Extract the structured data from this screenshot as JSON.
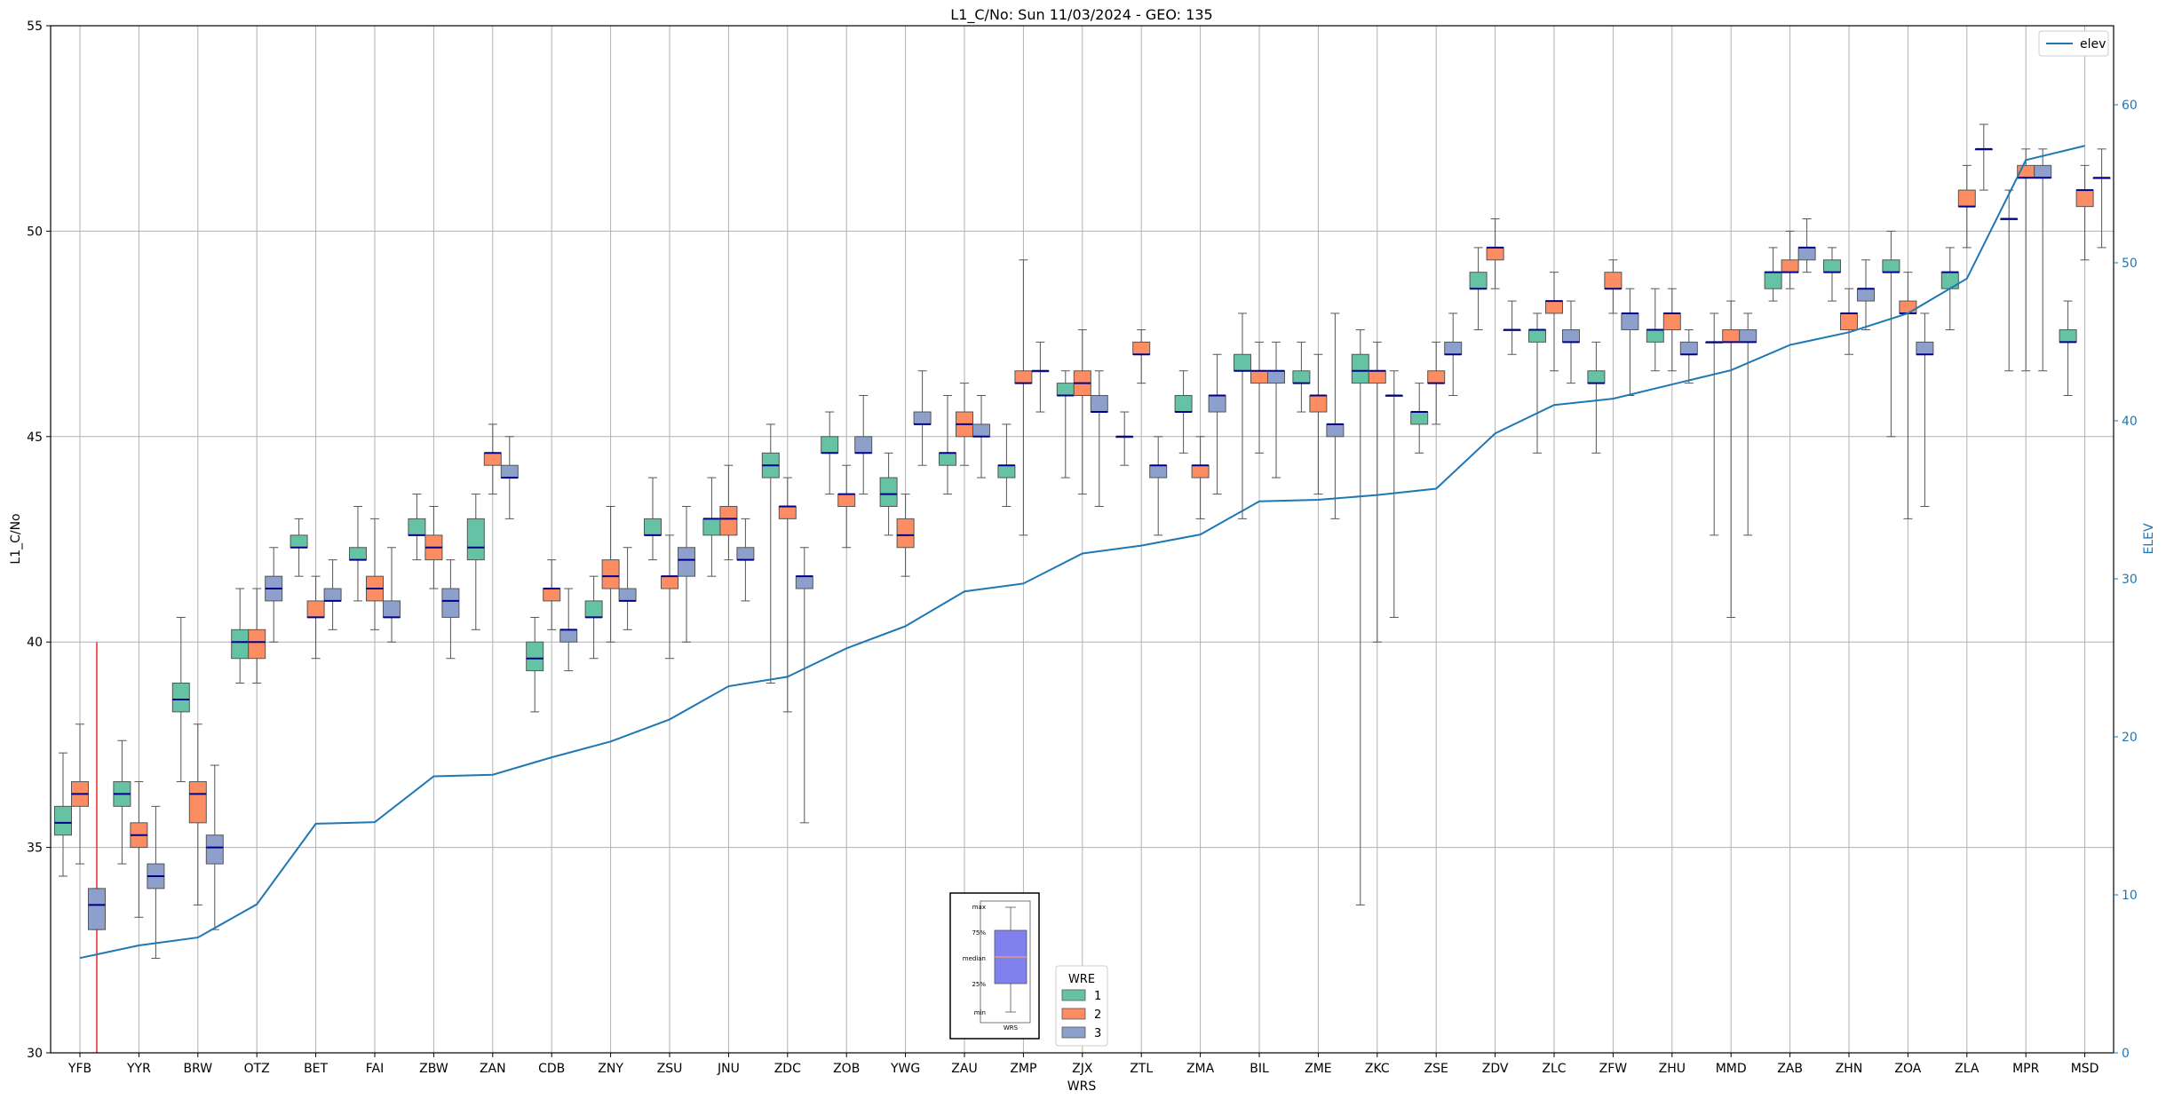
{
  "chart_data": {
    "type": "box",
    "title": "L1_C/No: Sun 11/03/2024 - GEO: 135",
    "xlabel": "WRS",
    "ylabel": "L1_C/No",
    "y2label": "ELEV",
    "ylim": [
      30,
      55
    ],
    "y2lim": [
      0,
      65
    ],
    "yticks": [
      "30",
      "35",
      "40",
      "45",
      "50",
      "55"
    ],
    "y2ticks": [
      "0",
      "10",
      "20",
      "30",
      "40",
      "50",
      "60"
    ],
    "grid": true,
    "categories": [
      "YFB",
      "YYR",
      "BRW",
      "OTZ",
      "BET",
      "FAI",
      "ZBW",
      "ZAN",
      "CDB",
      "ZNY",
      "ZSU",
      "JNU",
      "ZDC",
      "ZOB",
      "YWG",
      "ZAU",
      "ZMP",
      "ZJX",
      "ZTL",
      "ZMA",
      "BIL",
      "ZME",
      "ZKC",
      "ZSE",
      "ZDV",
      "ZLC",
      "ZFW",
      "ZHU",
      "MMD",
      "ZAB",
      "ZHN",
      "ZOA",
      "ZLA",
      "MPR",
      "MSD"
    ],
    "legend_title": "WRE",
    "legend": [
      {
        "label": "1",
        "color": "#66c2a5"
      },
      {
        "label": "2",
        "color": "#fc8d62"
      },
      {
        "label": "3",
        "color": "#8da0cb"
      }
    ],
    "line_legend": "elev",
    "line_color": "#1f77b4",
    "legend_position": "upper-right",
    "elev": [
      6.0,
      6.8,
      7.3,
      9.4,
      14.5,
      14.6,
      17.5,
      17.6,
      18.7,
      19.7,
      21.1,
      23.2,
      23.8,
      25.6,
      27.0,
      29.2,
      29.7,
      31.6,
      32.1,
      32.8,
      34.9,
      35.0,
      35.3,
      35.7,
      39.2,
      41.0,
      41.4,
      42.3,
      43.2,
      44.8,
      45.6,
      46.8,
      49.0,
      56.5,
      57.4
    ],
    "boxes": [
      {
        "site": "YFB",
        "wre": 1,
        "min": 34.3,
        "q1": 35.3,
        "median": 35.6,
        "q3": 36.0,
        "max": 37.3
      },
      {
        "site": "YFB",
        "wre": 2,
        "min": 34.6,
        "q1": 36.0,
        "median": 36.3,
        "q3": 36.6,
        "max": 38.0
      },
      {
        "site": "YFB",
        "wre": 3,
        "min": 33.0,
        "q1": 33.0,
        "median": 33.6,
        "q3": 34.0,
        "max": 34.0
      },
      {
        "site": "YYR",
        "wre": 1,
        "min": 34.6,
        "q1": 36.0,
        "median": 36.3,
        "q3": 36.6,
        "max": 37.6
      },
      {
        "site": "YYR",
        "wre": 2,
        "min": 33.3,
        "q1": 35.0,
        "median": 35.3,
        "q3": 35.6,
        "max": 36.6
      },
      {
        "site": "YYR",
        "wre": 3,
        "min": 32.3,
        "q1": 34.0,
        "median": 34.3,
        "q3": 34.6,
        "max": 36.0
      },
      {
        "site": "BRW",
        "wre": 1,
        "min": 36.6,
        "q1": 38.3,
        "median": 38.6,
        "q3": 39.0,
        "max": 40.6
      },
      {
        "site": "BRW",
        "wre": 2,
        "min": 33.6,
        "q1": 35.6,
        "median": 36.3,
        "q3": 36.6,
        "max": 38.0
      },
      {
        "site": "BRW",
        "wre": 3,
        "min": 33.0,
        "q1": 34.6,
        "median": 35.0,
        "q3": 35.3,
        "max": 37.0
      },
      {
        "site": "OTZ",
        "wre": 1,
        "min": 39.0,
        "q1": 39.6,
        "median": 40.0,
        "q3": 40.3,
        "max": 41.3
      },
      {
        "site": "OTZ",
        "wre": 2,
        "min": 39.0,
        "q1": 39.6,
        "median": 40.0,
        "q3": 40.3,
        "max": 41.3
      },
      {
        "site": "OTZ",
        "wre": 3,
        "min": 40.0,
        "q1": 41.0,
        "median": 41.3,
        "q3": 41.6,
        "max": 42.3
      },
      {
        "site": "BET",
        "wre": 1,
        "min": 41.6,
        "q1": 42.3,
        "median": 42.3,
        "q3": 42.6,
        "max": 43.0
      },
      {
        "site": "BET",
        "wre": 2,
        "min": 39.6,
        "q1": 40.6,
        "median": 40.6,
        "q3": 41.0,
        "max": 41.6
      },
      {
        "site": "BET",
        "wre": 3,
        "min": 40.3,
        "q1": 41.0,
        "median": 41.0,
        "q3": 41.3,
        "max": 42.0
      },
      {
        "site": "FAI",
        "wre": 1,
        "min": 41.0,
        "q1": 42.0,
        "median": 42.0,
        "q3": 42.3,
        "max": 43.3
      },
      {
        "site": "FAI",
        "wre": 2,
        "min": 40.3,
        "q1": 41.0,
        "median": 41.3,
        "q3": 41.6,
        "max": 43.0
      },
      {
        "site": "FAI",
        "wre": 3,
        "min": 40.0,
        "q1": 40.6,
        "median": 40.6,
        "q3": 41.0,
        "max": 42.3
      },
      {
        "site": "ZBW",
        "wre": 1,
        "min": 42.0,
        "q1": 42.6,
        "median": 42.6,
        "q3": 43.0,
        "max": 43.6
      },
      {
        "site": "ZBW",
        "wre": 2,
        "min": 41.3,
        "q1": 42.0,
        "median": 42.3,
        "q3": 42.6,
        "max": 43.3
      },
      {
        "site": "ZBW",
        "wre": 3,
        "min": 39.6,
        "q1": 40.6,
        "median": 41.0,
        "q3": 41.3,
        "max": 42.0
      },
      {
        "site": "ZAN",
        "wre": 1,
        "min": 40.3,
        "q1": 42.0,
        "median": 42.3,
        "q3": 43.0,
        "max": 43.6
      },
      {
        "site": "ZAN",
        "wre": 2,
        "min": 43.6,
        "q1": 44.3,
        "median": 44.6,
        "q3": 44.6,
        "max": 45.3
      },
      {
        "site": "ZAN",
        "wre": 3,
        "min": 43.0,
        "q1": 44.0,
        "median": 44.0,
        "q3": 44.3,
        "max": 45.0
      },
      {
        "site": "CDB",
        "wre": 1,
        "min": 38.3,
        "q1": 39.3,
        "median": 39.6,
        "q3": 40.0,
        "max": 40.6
      },
      {
        "site": "CDB",
        "wre": 2,
        "min": 40.3,
        "q1": 41.0,
        "median": 41.3,
        "q3": 41.3,
        "max": 42.0
      },
      {
        "site": "CDB",
        "wre": 3,
        "min": 39.3,
        "q1": 40.0,
        "median": 40.3,
        "q3": 40.3,
        "max": 41.3
      },
      {
        "site": "ZNY",
        "wre": 1,
        "min": 39.6,
        "q1": 40.6,
        "median": 40.6,
        "q3": 41.0,
        "max": 41.6
      },
      {
        "site": "ZNY",
        "wre": 2,
        "min": 40.0,
        "q1": 41.3,
        "median": 41.6,
        "q3": 42.0,
        "max": 43.3
      },
      {
        "site": "ZNY",
        "wre": 3,
        "min": 40.3,
        "q1": 41.0,
        "median": 41.0,
        "q3": 41.3,
        "max": 42.3
      },
      {
        "site": "ZSU",
        "wre": 1,
        "min": 42.0,
        "q1": 42.6,
        "median": 42.6,
        "q3": 43.0,
        "max": 44.0
      },
      {
        "site": "ZSU",
        "wre": 2,
        "min": 39.6,
        "q1": 41.3,
        "median": 41.6,
        "q3": 41.6,
        "max": 42.6
      },
      {
        "site": "ZSU",
        "wre": 3,
        "min": 40.0,
        "q1": 41.6,
        "median": 42.0,
        "q3": 42.3,
        "max": 43.3
      },
      {
        "site": "JNU",
        "wre": 1,
        "min": 41.6,
        "q1": 42.6,
        "median": 43.0,
        "q3": 43.0,
        "max": 44.0
      },
      {
        "site": "JNU",
        "wre": 2,
        "min": 42.0,
        "q1": 42.6,
        "median": 43.0,
        "q3": 43.3,
        "max": 44.3
      },
      {
        "site": "JNU",
        "wre": 3,
        "min": 41.0,
        "q1": 42.0,
        "median": 42.0,
        "q3": 42.3,
        "max": 43.0
      },
      {
        "site": "ZDC",
        "wre": 1,
        "min": 39.0,
        "q1": 44.0,
        "median": 44.3,
        "q3": 44.6,
        "max": 45.3
      },
      {
        "site": "ZDC",
        "wre": 2,
        "min": 38.3,
        "q1": 43.0,
        "median": 43.3,
        "q3": 43.3,
        "max": 44.0
      },
      {
        "site": "ZDC",
        "wre": 3,
        "min": 35.6,
        "q1": 41.3,
        "median": 41.6,
        "q3": 41.6,
        "max": 42.3
      },
      {
        "site": "ZOB",
        "wre": 1,
        "min": 43.6,
        "q1": 44.6,
        "median": 44.6,
        "q3": 45.0,
        "max": 45.6
      },
      {
        "site": "ZOB",
        "wre": 2,
        "min": 42.3,
        "q1": 43.3,
        "median": 43.6,
        "q3": 43.6,
        "max": 44.3
      },
      {
        "site": "ZOB",
        "wre": 3,
        "min": 43.6,
        "q1": 44.6,
        "median": 44.6,
        "q3": 45.0,
        "max": 46.0
      },
      {
        "site": "YWG",
        "wre": 1,
        "min": 42.6,
        "q1": 43.3,
        "median": 43.6,
        "q3": 44.0,
        "max": 44.6
      },
      {
        "site": "YWG",
        "wre": 2,
        "min": 41.6,
        "q1": 42.3,
        "median": 42.6,
        "q3": 43.0,
        "max": 43.6
      },
      {
        "site": "YWG",
        "wre": 3,
        "min": 44.3,
        "q1": 45.3,
        "median": 45.3,
        "q3": 45.6,
        "max": 46.6
      },
      {
        "site": "ZAU",
        "wre": 1,
        "min": 43.6,
        "q1": 44.3,
        "median": 44.6,
        "q3": 44.6,
        "max": 46.0
      },
      {
        "site": "ZAU",
        "wre": 2,
        "min": 44.3,
        "q1": 45.0,
        "median": 45.3,
        "q3": 45.6,
        "max": 46.3
      },
      {
        "site": "ZAU",
        "wre": 3,
        "min": 44.0,
        "q1": 45.0,
        "median": 45.0,
        "q3": 45.3,
        "max": 46.0
      },
      {
        "site": "ZMP",
        "wre": 1,
        "min": 43.3,
        "q1": 44.0,
        "median": 44.3,
        "q3": 44.3,
        "max": 45.3
      },
      {
        "site": "ZMP",
        "wre": 2,
        "min": 42.6,
        "q1": 46.3,
        "median": 46.3,
        "q3": 46.6,
        "max": 49.3
      },
      {
        "site": "ZMP",
        "wre": 3,
        "min": 45.6,
        "q1": 46.6,
        "median": 46.6,
        "q3": 46.6,
        "max": 47.3
      },
      {
        "site": "ZJX",
        "wre": 1,
        "min": 44.0,
        "q1": 46.0,
        "median": 46.0,
        "q3": 46.3,
        "max": 46.6
      },
      {
        "site": "ZJX",
        "wre": 2,
        "min": 43.6,
        "q1": 46.0,
        "median": 46.3,
        "q3": 46.6,
        "max": 47.6
      },
      {
        "site": "ZJX",
        "wre": 3,
        "min": 43.3,
        "q1": 45.6,
        "median": 45.6,
        "q3": 46.0,
        "max": 46.6
      },
      {
        "site": "ZTL",
        "wre": 1,
        "min": 44.3,
        "q1": 45.0,
        "median": 45.0,
        "q3": 45.0,
        "max": 45.6
      },
      {
        "site": "ZTL",
        "wre": 2,
        "min": 46.3,
        "q1": 47.0,
        "median": 47.0,
        "q3": 47.3,
        "max": 47.6
      },
      {
        "site": "ZTL",
        "wre": 3,
        "min": 42.6,
        "q1": 44.0,
        "median": 44.3,
        "q3": 44.3,
        "max": 45.0
      },
      {
        "site": "ZMA",
        "wre": 1,
        "min": 44.6,
        "q1": 45.6,
        "median": 45.6,
        "q3": 46.0,
        "max": 46.6
      },
      {
        "site": "ZMA",
        "wre": 2,
        "min": 43.0,
        "q1": 44.0,
        "median": 44.3,
        "q3": 44.3,
        "max": 45.0
      },
      {
        "site": "ZMA",
        "wre": 3,
        "min": 43.6,
        "q1": 45.6,
        "median": 46.0,
        "q3": 46.0,
        "max": 47.0
      },
      {
        "site": "BIL",
        "wre": 1,
        "min": 43.0,
        "q1": 46.6,
        "median": 46.6,
        "q3": 47.0,
        "max": 48.0
      },
      {
        "site": "BIL",
        "wre": 2,
        "min": 44.6,
        "q1": 46.3,
        "median": 46.6,
        "q3": 46.6,
        "max": 47.3
      },
      {
        "site": "BIL",
        "wre": 3,
        "min": 44.0,
        "q1": 46.3,
        "median": 46.6,
        "q3": 46.6,
        "max": 47.3
      },
      {
        "site": "ZME",
        "wre": 1,
        "min": 45.6,
        "q1": 46.3,
        "median": 46.3,
        "q3": 46.6,
        "max": 47.3
      },
      {
        "site": "ZME",
        "wre": 2,
        "min": 43.6,
        "q1": 45.6,
        "median": 46.0,
        "q3": 46.0,
        "max": 47.0
      },
      {
        "site": "ZME",
        "wre": 3,
        "min": 43.0,
        "q1": 45.0,
        "median": 45.3,
        "q3": 45.3,
        "max": 48.0
      },
      {
        "site": "ZKC",
        "wre": 1,
        "min": 33.6,
        "q1": 46.3,
        "median": 46.6,
        "q3": 47.0,
        "max": 47.6
      },
      {
        "site": "ZKC",
        "wre": 2,
        "min": 40.0,
        "q1": 46.3,
        "median": 46.6,
        "q3": 46.6,
        "max": 47.3
      },
      {
        "site": "ZKC",
        "wre": 3,
        "min": 40.6,
        "q1": 46.0,
        "median": 46.0,
        "q3": 46.0,
        "max": 46.6
      },
      {
        "site": "ZSE",
        "wre": 1,
        "min": 44.6,
        "q1": 45.3,
        "median": 45.6,
        "q3": 45.6,
        "max": 46.3
      },
      {
        "site": "ZSE",
        "wre": 2,
        "min": 45.3,
        "q1": 46.3,
        "median": 46.3,
        "q3": 46.6,
        "max": 47.3
      },
      {
        "site": "ZSE",
        "wre": 3,
        "min": 46.0,
        "q1": 47.0,
        "median": 47.0,
        "q3": 47.3,
        "max": 48.0
      },
      {
        "site": "ZDV",
        "wre": 1,
        "min": 47.6,
        "q1": 48.6,
        "median": 48.6,
        "q3": 49.0,
        "max": 49.6
      },
      {
        "site": "ZDV",
        "wre": 2,
        "min": 48.6,
        "q1": 49.3,
        "median": 49.6,
        "q3": 49.6,
        "max": 50.3
      },
      {
        "site": "ZDV",
        "wre": 3,
        "min": 47.0,
        "q1": 47.6,
        "median": 47.6,
        "q3": 47.6,
        "max": 48.3
      },
      {
        "site": "ZLC",
        "wre": 1,
        "min": 44.6,
        "q1": 47.3,
        "median": 47.6,
        "q3": 47.6,
        "max": 48.0
      },
      {
        "site": "ZLC",
        "wre": 2,
        "min": 46.6,
        "q1": 48.0,
        "median": 48.3,
        "q3": 48.3,
        "max": 49.0
      },
      {
        "site": "ZLC",
        "wre": 3,
        "min": 46.3,
        "q1": 47.3,
        "median": 47.3,
        "q3": 47.6,
        "max": 48.3
      },
      {
        "site": "ZFW",
        "wre": 1,
        "min": 44.6,
        "q1": 46.3,
        "median": 46.3,
        "q3": 46.6,
        "max": 47.3
      },
      {
        "site": "ZFW",
        "wre": 2,
        "min": 48.0,
        "q1": 48.6,
        "median": 48.6,
        "q3": 49.0,
        "max": 49.3
      },
      {
        "site": "ZFW",
        "wre": 3,
        "min": 46.0,
        "q1": 47.6,
        "median": 48.0,
        "q3": 48.0,
        "max": 48.6
      },
      {
        "site": "ZHU",
        "wre": 1,
        "min": 46.6,
        "q1": 47.3,
        "median": 47.6,
        "q3": 47.6,
        "max": 48.6
      },
      {
        "site": "ZHU",
        "wre": 2,
        "min": 46.6,
        "q1": 47.6,
        "median": 48.0,
        "q3": 48.0,
        "max": 48.6
      },
      {
        "site": "ZHU",
        "wre": 3,
        "min": 46.3,
        "q1": 47.0,
        "median": 47.0,
        "q3": 47.3,
        "max": 47.6
      },
      {
        "site": "MMD",
        "wre": 1,
        "min": 42.6,
        "q1": 47.3,
        "median": 47.3,
        "q3": 47.3,
        "max": 48.0
      },
      {
        "site": "MMD",
        "wre": 2,
        "min": 40.6,
        "q1": 47.3,
        "median": 47.3,
        "q3": 47.6,
        "max": 48.3
      },
      {
        "site": "MMD",
        "wre": 3,
        "min": 42.6,
        "q1": 47.3,
        "median": 47.3,
        "q3": 47.6,
        "max": 48.0
      },
      {
        "site": "ZAB",
        "wre": 1,
        "min": 48.3,
        "q1": 48.6,
        "median": 49.0,
        "q3": 49.0,
        "max": 49.6
      },
      {
        "site": "ZAB",
        "wre": 2,
        "min": 48.6,
        "q1": 49.0,
        "median": 49.0,
        "q3": 49.3,
        "max": 50.0
      },
      {
        "site": "ZAB",
        "wre": 3,
        "min": 49.0,
        "q1": 49.3,
        "median": 49.6,
        "q3": 49.6,
        "max": 50.3
      },
      {
        "site": "ZHN",
        "wre": 1,
        "min": 48.3,
        "q1": 49.0,
        "median": 49.0,
        "q3": 49.3,
        "max": 49.6
      },
      {
        "site": "ZHN",
        "wre": 2,
        "min": 47.0,
        "q1": 47.6,
        "median": 48.0,
        "q3": 48.0,
        "max": 48.6
      },
      {
        "site": "ZHN",
        "wre": 3,
        "min": 47.6,
        "q1": 48.3,
        "median": 48.6,
        "q3": 48.6,
        "max": 49.3
      },
      {
        "site": "ZOA",
        "wre": 1,
        "min": 45.0,
        "q1": 49.0,
        "median": 49.0,
        "q3": 49.3,
        "max": 50.0
      },
      {
        "site": "ZOA",
        "wre": 2,
        "min": 43.0,
        "q1": 48.0,
        "median": 48.0,
        "q3": 48.3,
        "max": 49.0
      },
      {
        "site": "ZOA",
        "wre": 3,
        "min": 43.3,
        "q1": 47.0,
        "median": 47.0,
        "q3": 47.3,
        "max": 48.0
      },
      {
        "site": "ZLA",
        "wre": 1,
        "min": 47.6,
        "q1": 48.6,
        "median": 49.0,
        "q3": 49.0,
        "max": 49.6
      },
      {
        "site": "ZLA",
        "wre": 2,
        "min": 49.6,
        "q1": 50.6,
        "median": 50.6,
        "q3": 51.0,
        "max": 51.6
      },
      {
        "site": "ZLA",
        "wre": 3,
        "min": 51.0,
        "q1": 52.0,
        "median": 52.0,
        "q3": 52.0,
        "max": 52.6
      },
      {
        "site": "MPR",
        "wre": 1,
        "min": 46.6,
        "q1": 50.3,
        "median": 50.3,
        "q3": 50.3,
        "max": 51.0
      },
      {
        "site": "MPR",
        "wre": 2,
        "min": 46.6,
        "q1": 51.3,
        "median": 51.3,
        "q3": 51.6,
        "max": 52.0
      },
      {
        "site": "MPR",
        "wre": 3,
        "min": 46.6,
        "q1": 51.3,
        "median": 51.3,
        "q3": 51.6,
        "max": 52.0
      },
      {
        "site": "MSD",
        "wre": 1,
        "min": 46.0,
        "q1": 47.3,
        "median": 47.3,
        "q3": 47.6,
        "max": 48.3
      },
      {
        "site": "MSD",
        "wre": 2,
        "min": 49.3,
        "q1": 50.6,
        "median": 51.0,
        "q3": 51.0,
        "max": 51.6
      },
      {
        "site": "MSD",
        "wre": 3,
        "min": 49.6,
        "q1": 51.3,
        "median": 51.3,
        "q3": 51.3,
        "max": 52.0
      }
    ],
    "red_marker": {
      "site": "YFB",
      "from": 30,
      "to": 40
    },
    "inset_labels": [
      "max",
      "75%",
      "median",
      "25%",
      "min"
    ],
    "inset_xlabel": "WRS"
  }
}
